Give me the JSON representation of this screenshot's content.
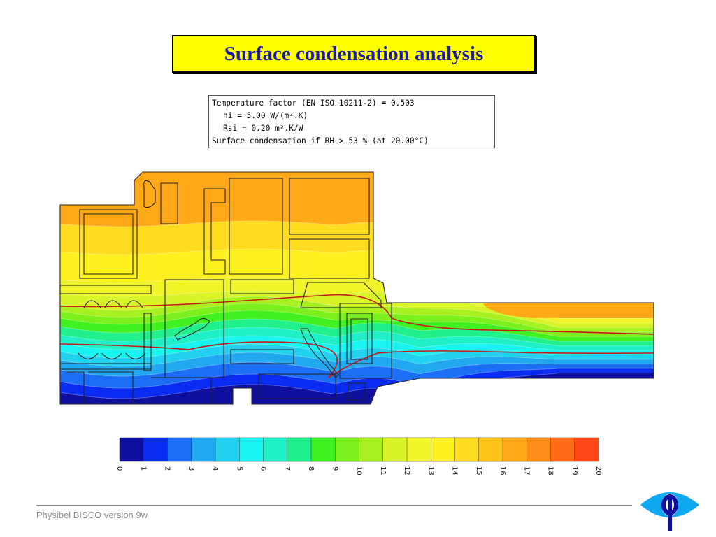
{
  "slide": {
    "title": "Surface condensation analysis",
    "footer": "Physibel BISCO version 9w"
  },
  "info": {
    "line1": "Temperature factor (EN ISO 10211-2) = 0.503",
    "line2": "hi = 5.00 W/(m².K)",
    "line3": "Rsi = 0.20 m².K/W",
    "line4": "Surface condensation if RH > 53 % (at 20.00°C)"
  },
  "scale": {
    "labels": [
      "0",
      "1",
      "2",
      "3",
      "4",
      "5",
      "6",
      "7",
      "8",
      "9",
      "10",
      "11",
      "12",
      "13",
      "14",
      "15",
      "16",
      "17",
      "18",
      "19",
      "20"
    ],
    "colors": [
      "#1010a0",
      "#0a2cf0",
      "#1c6ef4",
      "#22a8f0",
      "#22d0f0",
      "#18f4f0",
      "#20f0c8",
      "#20f08c",
      "#40f020",
      "#7cf01c",
      "#a8f020",
      "#d8f428",
      "#f0f428",
      "#fff020",
      "#ffdc20",
      "#ffc418",
      "#ffa818",
      "#ff8c18",
      "#ff6c18",
      "#ff4818"
    ]
  },
  "contours": {
    "colors": [
      "#1010a0",
      "#0a2cf0",
      "#1c6ef4",
      "#22a8f0",
      "#22d0f0",
      "#18f4f0",
      "#20f0c8",
      "#20f08c",
      "#40f020",
      "#7cf01c",
      "#a8f020",
      "#d8f428",
      "#f0f428",
      "#fff020",
      "#ffdc20",
      "#ffa818"
    ],
    "condensation_line_color": "#c81818"
  },
  "logo_colors": {
    "outer": "#10a8f0",
    "inner": "#ffffff",
    "phi": "#1010a0"
  }
}
